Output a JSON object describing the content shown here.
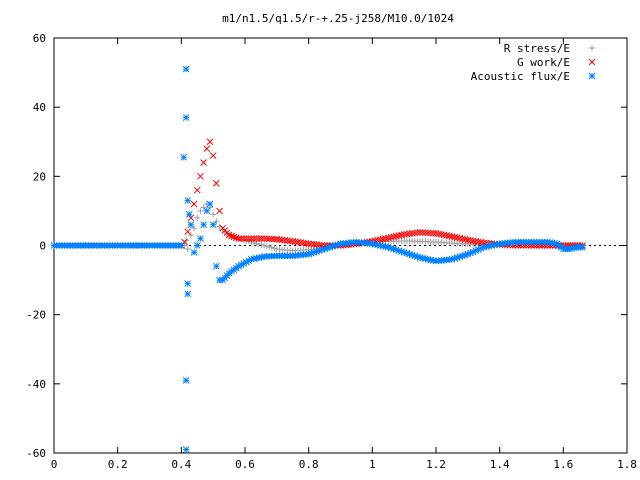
{
  "chart_data": {
    "type": "scatter",
    "title": "m1/n1.5/q1.5/r-+.25-j258/M10.0/1024",
    "xlabel": "",
    "ylabel": "",
    "xlim": [
      0,
      1.8
    ],
    "ylim": [
      -60,
      60
    ],
    "x_ticks": [
      "0",
      "0.2",
      "0.4",
      "0.6",
      "0.8",
      "1",
      "1.2",
      "1.4",
      "1.6",
      "1.8"
    ],
    "y_ticks": [
      "60",
      "40",
      "20",
      "0",
      "-20",
      "-40",
      "-60"
    ],
    "grid": false,
    "legend_position": "top-right",
    "series": [
      {
        "name": "R stress/E",
        "marker": "plus",
        "color": "#a0a0a0",
        "points": [
          [
            0,
            0
          ],
          [
            0.2,
            0
          ],
          [
            0.41,
            0
          ],
          [
            0.415,
            1.5
          ],
          [
            0.42,
            -1
          ],
          [
            0.43,
            3
          ],
          [
            0.44,
            5
          ],
          [
            0.45,
            8
          ],
          [
            0.46,
            10
          ],
          [
            0.47,
            11
          ],
          [
            0.48,
            12
          ],
          [
            0.49,
            11
          ],
          [
            0.5,
            9
          ],
          [
            0.51,
            7
          ],
          [
            0.52,
            5.5
          ],
          [
            0.53,
            4.5
          ],
          [
            0.55,
            3
          ],
          [
            0.58,
            2
          ],
          [
            0.62,
            1
          ],
          [
            0.66,
            0
          ],
          [
            0.7,
            -1
          ],
          [
            0.75,
            -1.5
          ],
          [
            0.8,
            -1.2
          ],
          [
            0.85,
            -0.5
          ],
          [
            0.9,
            0.2
          ],
          [
            0.95,
            0.7
          ],
          [
            1.0,
            1.0
          ],
          [
            1.05,
            1.2
          ],
          [
            1.1,
            1.3
          ],
          [
            1.15,
            1.2
          ],
          [
            1.2,
            1.0
          ],
          [
            1.25,
            0.7
          ],
          [
            1.3,
            0.4
          ],
          [
            1.35,
            0.2
          ],
          [
            1.4,
            0
          ],
          [
            1.45,
            -0.2
          ],
          [
            1.5,
            0
          ],
          [
            1.55,
            0
          ],
          [
            1.6,
            0
          ],
          [
            1.66,
            0
          ]
        ]
      },
      {
        "name": "G work/E",
        "marker": "cross",
        "color": "#ff0000",
        "points": [
          [
            0.4,
            0
          ],
          [
            0.41,
            1
          ],
          [
            0.42,
            4
          ],
          [
            0.43,
            8
          ],
          [
            0.44,
            12
          ],
          [
            0.45,
            16
          ],
          [
            0.46,
            20
          ],
          [
            0.47,
            24
          ],
          [
            0.48,
            28
          ],
          [
            0.49,
            30
          ],
          [
            0.5,
            26
          ],
          [
            0.51,
            18
          ],
          [
            0.52,
            10
          ],
          [
            0.53,
            5
          ],
          [
            0.55,
            3
          ],
          [
            0.58,
            2
          ],
          [
            0.62,
            2
          ],
          [
            0.66,
            2
          ],
          [
            0.7,
            1.8
          ],
          [
            0.75,
            1.2
          ],
          [
            0.8,
            0.5
          ],
          [
            0.85,
            0
          ],
          [
            0.9,
            0
          ],
          [
            0.95,
            0.5
          ],
          [
            1.0,
            1.2
          ],
          [
            1.05,
            2.2
          ],
          [
            1.1,
            3.2
          ],
          [
            1.15,
            3.8
          ],
          [
            1.2,
            3.5
          ],
          [
            1.25,
            2.6
          ],
          [
            1.3,
            1.6
          ],
          [
            1.35,
            0.8
          ],
          [
            1.4,
            0.3
          ],
          [
            1.45,
            0.1
          ],
          [
            1.5,
            0
          ],
          [
            1.55,
            0
          ],
          [
            1.6,
            0
          ],
          [
            1.66,
            0
          ]
        ]
      },
      {
        "name": "Acoustic flux/E",
        "marker": "star",
        "color": "#0080ff",
        "points": [
          [
            0,
            0
          ],
          [
            0.05,
            0
          ],
          [
            0.1,
            0
          ],
          [
            0.15,
            0
          ],
          [
            0.2,
            0
          ],
          [
            0.25,
            0
          ],
          [
            0.3,
            0
          ],
          [
            0.35,
            0
          ],
          [
            0.4,
            0
          ],
          [
            0.415,
            51
          ],
          [
            0.415,
            37
          ],
          [
            0.415,
            -39
          ],
          [
            0.415,
            -59
          ],
          [
            0.42,
            -14
          ],
          [
            0.42,
            -11
          ],
          [
            0.42,
            13
          ],
          [
            0.425,
            9
          ],
          [
            0.43,
            6
          ],
          [
            0.44,
            -2
          ],
          [
            0.45,
            0
          ],
          [
            0.46,
            2
          ],
          [
            0.47,
            6
          ],
          [
            0.48,
            10
          ],
          [
            0.49,
            12
          ],
          [
            0.5,
            6
          ],
          [
            0.51,
            -6
          ],
          [
            0.52,
            -10
          ],
          [
            0.53,
            -10
          ],
          [
            0.55,
            -8
          ],
          [
            0.58,
            -6
          ],
          [
            0.62,
            -4
          ],
          [
            0.66,
            -3.2
          ],
          [
            0.7,
            -3
          ],
          [
            0.75,
            -3
          ],
          [
            0.8,
            -2.5
          ],
          [
            0.85,
            -1
          ],
          [
            0.9,
            0.5
          ],
          [
            0.95,
            1
          ],
          [
            1.0,
            0.5
          ],
          [
            1.05,
            -0.5
          ],
          [
            1.1,
            -2
          ],
          [
            1.15,
            -3.5
          ],
          [
            1.2,
            -4.5
          ],
          [
            1.25,
            -4
          ],
          [
            1.3,
            -2.5
          ],
          [
            1.35,
            -0.5
          ],
          [
            1.4,
            0.5
          ],
          [
            1.45,
            1
          ],
          [
            1.5,
            1
          ],
          [
            1.55,
            1
          ],
          [
            1.58,
            0.5
          ],
          [
            1.6,
            -1
          ],
          [
            1.62,
            -1
          ],
          [
            1.64,
            -0.5
          ],
          [
            1.66,
            -0.5
          ]
        ]
      }
    ]
  }
}
